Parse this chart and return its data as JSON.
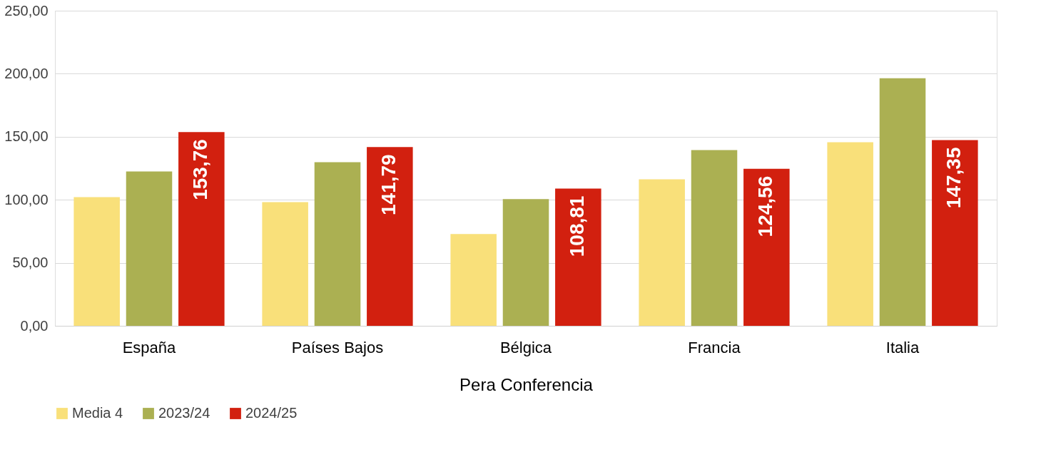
{
  "chart_data": {
    "type": "bar",
    "xlabel": "Pera Conferencia",
    "categories": [
      "España",
      "Países Bajos",
      "Bélgica",
      "Francia",
      "Italia"
    ],
    "series": [
      {
        "name": "Media 4",
        "color": "#f9e07a",
        "values": [
          102.1,
          98.2,
          72.8,
          116.3,
          145.6
        ]
      },
      {
        "name": "2023/24",
        "color": "#abb052",
        "values": [
          122.5,
          129.8,
          100.5,
          139.4,
          196.4
        ]
      },
      {
        "name": "2024/25",
        "color": "#d2200f",
        "values": [
          153.76,
          141.79,
          108.81,
          124.56,
          147.35
        ],
        "value_labels": [
          "153,76",
          "141,79",
          "108,81",
          "124,56",
          "147,35"
        ]
      }
    ],
    "ylim": [
      0,
      250
    ],
    "yticks": [
      {
        "value": 0,
        "label": "0,00"
      },
      {
        "value": 50,
        "label": "50,00"
      },
      {
        "value": 100,
        "label": "100,00"
      },
      {
        "value": 150,
        "label": "150,00"
      },
      {
        "value": 200,
        "label": "200,00"
      },
      {
        "value": 250,
        "label": "250,00"
      }
    ],
    "grid": "y",
    "legend": "bottom"
  }
}
